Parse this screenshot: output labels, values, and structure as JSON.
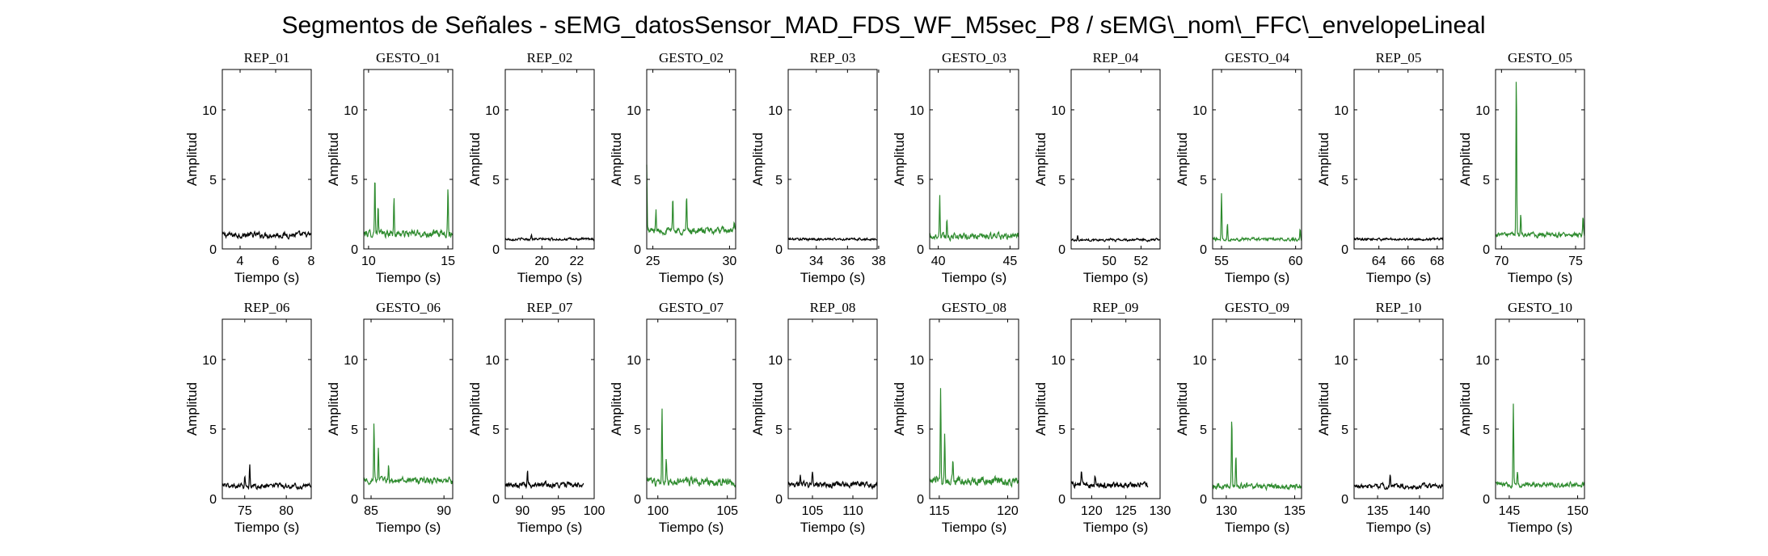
{
  "figure": {
    "title": "Segmentos de Señales - sEMG_datosSensor_MAD_FDS_WF_M5sec_P8 / sEMG\\_nom\\_FFC\\_envelopeLineal"
  },
  "colors": {
    "rep": "#000000",
    "gesto": "#2e8b2e",
    "axes": "#000000"
  },
  "chart_data": [
    {
      "type": "line",
      "title": "REP_01",
      "xlabel": "Tiempo (s)",
      "ylabel": "Amplitud",
      "xlim": [
        3,
        8
      ],
      "ylim": [
        0,
        12.9
      ],
      "xticks": [
        4,
        6,
        8
      ],
      "yticks": [
        0,
        5,
        10
      ],
      "color": "rep",
      "baseline": 1.0,
      "noise": 0.35,
      "peaks": []
    },
    {
      "type": "line",
      "title": "GESTO_01",
      "xlabel": "Tiempo (s)",
      "ylabel": "Amplitud",
      "xlim": [
        9.7,
        15.3
      ],
      "ylim": [
        0,
        12.9
      ],
      "xticks": [
        10,
        15
      ],
      "yticks": [
        0,
        5,
        10
      ],
      "color": "gesto",
      "baseline": 1.1,
      "noise": 0.45,
      "peaks": [
        [
          10.4,
          5.5
        ],
        [
          10.6,
          3.2
        ],
        [
          11.6,
          3.7
        ],
        [
          15.0,
          4.5
        ]
      ]
    },
    {
      "type": "line",
      "title": "REP_02",
      "xlabel": "Tiempo (s)",
      "ylabel": "Amplitud",
      "xlim": [
        17.9,
        23
      ],
      "ylim": [
        0,
        12.9
      ],
      "xticks": [
        20,
        22
      ],
      "yticks": [
        0,
        5,
        10
      ],
      "color": "rep",
      "baseline": 0.7,
      "noise": 0.15,
      "peaks": [
        [
          19.4,
          1.1
        ]
      ]
    },
    {
      "type": "line",
      "title": "GESTO_02",
      "xlabel": "Tiempo (s)",
      "ylabel": "Amplitud",
      "xlim": [
        24.6,
        30.4
      ],
      "ylim": [
        0,
        12.9
      ],
      "xticks": [
        25,
        30
      ],
      "yticks": [
        0,
        5,
        10
      ],
      "color": "gesto",
      "baseline": 1.3,
      "noise": 0.4,
      "peaks": [
        [
          24.6,
          6.0
        ],
        [
          25.2,
          2.8
        ],
        [
          26.3,
          3.9
        ],
        [
          27.2,
          3.8
        ],
        [
          30.3,
          1.9
        ]
      ]
    },
    {
      "type": "line",
      "title": "REP_03",
      "xlabel": "Tiempo (s)",
      "ylabel": "Amplitud",
      "xlim": [
        32.2,
        37.9
      ],
      "ylim": [
        0,
        12.9
      ],
      "xticks": [
        34,
        36,
        38
      ],
      "yticks": [
        0,
        5,
        10
      ],
      "color": "rep",
      "baseline": 0.7,
      "noise": 0.15,
      "peaks": []
    },
    {
      "type": "line",
      "title": "GESTO_03",
      "xlabel": "Tiempo (s)",
      "ylabel": "Amplitud",
      "xlim": [
        39.4,
        45.6
      ],
      "ylim": [
        0,
        12.9
      ],
      "xticks": [
        40,
        45
      ],
      "yticks": [
        0,
        5,
        10
      ],
      "color": "gesto",
      "baseline": 0.9,
      "noise": 0.4,
      "peaks": [
        [
          40.1,
          3.9
        ],
        [
          40.6,
          2.2
        ]
      ]
    },
    {
      "type": "line",
      "title": "REP_04",
      "xlabel": "Tiempo (s)",
      "ylabel": "Amplitud",
      "xlim": [
        47.6,
        53.2
      ],
      "ylim": [
        0,
        12.9
      ],
      "xticks": [
        50,
        52
      ],
      "yticks": [
        0,
        5,
        10
      ],
      "color": "rep",
      "baseline": 0.65,
      "noise": 0.15,
      "peaks": [
        [
          48.0,
          1.0
        ]
      ]
    },
    {
      "type": "line",
      "title": "GESTO_04",
      "xlabel": "Tiempo (s)",
      "ylabel": "Amplitud",
      "xlim": [
        54.4,
        60.4
      ],
      "ylim": [
        0,
        12.9
      ],
      "xticks": [
        55,
        60
      ],
      "yticks": [
        0,
        5,
        10
      ],
      "color": "gesto",
      "baseline": 0.7,
      "noise": 0.2,
      "peaks": [
        [
          55.0,
          4.1
        ],
        [
          55.4,
          2.0
        ],
        [
          60.3,
          1.4
        ]
      ]
    },
    {
      "type": "line",
      "title": "REP_05",
      "xlabel": "Tiempo (s)",
      "ylabel": "Amplitud",
      "xlim": [
        62.3,
        68.4
      ],
      "ylim": [
        0,
        12.9
      ],
      "xticks": [
        64,
        66,
        68
      ],
      "yticks": [
        0,
        5,
        10
      ],
      "color": "rep",
      "baseline": 0.7,
      "noise": 0.15,
      "peaks": []
    },
    {
      "type": "line",
      "title": "GESTO_05",
      "xlabel": "Tiempo (s)",
      "ylabel": "Amplitud",
      "xlim": [
        69.6,
        75.6
      ],
      "ylim": [
        0,
        12.9
      ],
      "xticks": [
        70,
        75
      ],
      "yticks": [
        0,
        5,
        10
      ],
      "color": "gesto",
      "baseline": 1.0,
      "noise": 0.3,
      "peaks": [
        [
          71.0,
          12.8
        ],
        [
          71.3,
          2.5
        ],
        [
          75.5,
          2.2
        ]
      ]
    },
    {
      "type": "line",
      "title": "REP_06",
      "xlabel": "Tiempo (s)",
      "ylabel": "Amplitud",
      "xlim": [
        72.3,
        83
      ],
      "ylim": [
        0,
        12.9
      ],
      "xticks": [
        75,
        80
      ],
      "yticks": [
        0,
        5,
        10
      ],
      "color": "rep",
      "baseline": 0.9,
      "noise": 0.3,
      "peaks": [
        [
          75.6,
          2.3
        ],
        [
          75.0,
          1.6
        ]
      ]
    },
    {
      "type": "line",
      "title": "GESTO_06",
      "xlabel": "Tiempo (s)",
      "ylabel": "Amplitud",
      "xlim": [
        84.5,
        90.6
      ],
      "ylim": [
        0,
        12.9
      ],
      "xticks": [
        85,
        90
      ],
      "yticks": [
        0,
        5,
        10
      ],
      "color": "gesto",
      "baseline": 1.3,
      "noise": 0.4,
      "peaks": [
        [
          85.2,
          5.5
        ],
        [
          85.5,
          3.5
        ],
        [
          86.2,
          2.3
        ]
      ]
    },
    {
      "type": "line",
      "title": "REP_07",
      "xlabel": "Tiempo (s)",
      "ylabel": "Amplitud",
      "xlim": [
        87.6,
        100
      ],
      "ylim": [
        0,
        12.9
      ],
      "xticks": [
        90,
        95,
        100
      ],
      "yticks": [
        0,
        5,
        10
      ],
      "color": "rep",
      "baseline": 1.0,
      "noise": 0.35,
      "peaks": [
        [
          90.7,
          2.0
        ]
      ],
      "xend": 98.5
    },
    {
      "type": "line",
      "title": "GESTO_07",
      "xlabel": "Tiempo (s)",
      "ylabel": "Amplitud",
      "xlim": [
        99.2,
        105.6
      ],
      "ylim": [
        0,
        12.9
      ],
      "xticks": [
        100,
        105
      ],
      "yticks": [
        0,
        5,
        10
      ],
      "color": "gesto",
      "baseline": 1.2,
      "noise": 0.5,
      "peaks": [
        [
          100.3,
          6.6
        ],
        [
          100.6,
          3.0
        ]
      ]
    },
    {
      "type": "line",
      "title": "REP_08",
      "xlabel": "Tiempo (s)",
      "ylabel": "Amplitud",
      "xlim": [
        102,
        113
      ],
      "ylim": [
        0,
        12.9
      ],
      "xticks": [
        105,
        110
      ],
      "yticks": [
        0,
        5,
        10
      ],
      "color": "rep",
      "baseline": 1.0,
      "noise": 0.35,
      "peaks": [
        [
          103.5,
          1.8
        ],
        [
          105.0,
          1.9
        ]
      ]
    },
    {
      "type": "line",
      "title": "GESTO_08",
      "xlabel": "Tiempo (s)",
      "ylabel": "Amplitud",
      "xlim": [
        114.3,
        120.8
      ],
      "ylim": [
        0,
        12.9
      ],
      "xticks": [
        115,
        120
      ],
      "yticks": [
        0,
        5,
        10
      ],
      "color": "gesto",
      "baseline": 1.3,
      "noise": 0.55,
      "peaks": [
        [
          115.1,
          7.9
        ],
        [
          115.4,
          4.8
        ],
        [
          116.0,
          3.0
        ]
      ]
    },
    {
      "type": "line",
      "title": "REP_09",
      "xlabel": "Tiempo (s)",
      "ylabel": "Amplitud",
      "xlim": [
        117,
        130
      ],
      "ylim": [
        0,
        12.9
      ],
      "xticks": [
        120,
        125,
        130
      ],
      "yticks": [
        0,
        5,
        10
      ],
      "color": "rep",
      "baseline": 1.0,
      "noise": 0.35,
      "peaks": [
        [
          118.5,
          1.8
        ],
        [
          120.5,
          1.7
        ]
      ],
      "xend": 128.2
    },
    {
      "type": "line",
      "title": "GESTO_09",
      "xlabel": "Tiempo (s)",
      "ylabel": "Amplitud",
      "xlim": [
        129,
        135.5
      ],
      "ylim": [
        0,
        12.9
      ],
      "xticks": [
        130,
        135
      ],
      "yticks": [
        0,
        5,
        10
      ],
      "color": "gesto",
      "baseline": 0.9,
      "noise": 0.35,
      "peaks": [
        [
          130.4,
          6.0
        ],
        [
          130.7,
          3.2
        ]
      ]
    },
    {
      "type": "line",
      "title": "REP_10",
      "xlabel": "Tiempo (s)",
      "ylabel": "Amplitud",
      "xlim": [
        132.2,
        142.8
      ],
      "ylim": [
        0,
        12.9
      ],
      "xticks": [
        135,
        140
      ],
      "yticks": [
        0,
        5,
        10
      ],
      "color": "rep",
      "baseline": 0.9,
      "noise": 0.3,
      "peaks": [
        [
          136.5,
          1.6
        ]
      ]
    },
    {
      "type": "line",
      "title": "GESTO_10",
      "xlabel": "Tiempo (s)",
      "ylabel": "Amplitud",
      "xlim": [
        144,
        150.5
      ],
      "ylim": [
        0,
        12.9
      ],
      "xticks": [
        145,
        150
      ],
      "yticks": [
        0,
        5,
        10
      ],
      "color": "gesto",
      "baseline": 1.0,
      "noise": 0.3,
      "peaks": [
        [
          145.3,
          6.8
        ],
        [
          145.6,
          2.0
        ]
      ]
    }
  ]
}
